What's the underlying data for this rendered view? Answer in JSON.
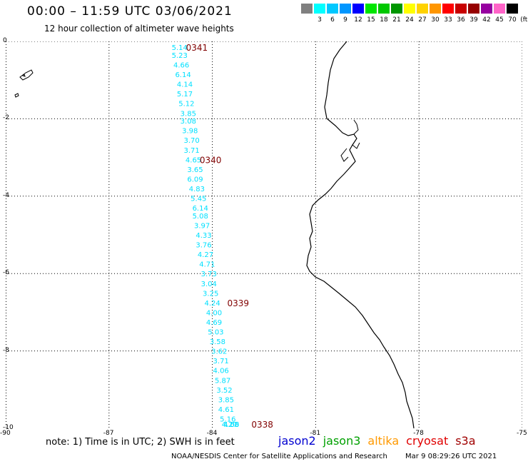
{
  "header": {
    "title": "00:00 – 11:59 UTC 03/06/2021",
    "subtitle": "12 hour collection of altimeter wave heights"
  },
  "color_scale": {
    "swatches": [
      {
        "label": "",
        "color": "#808080"
      },
      {
        "label": "3",
        "color": "#00ffff"
      },
      {
        "label": "6",
        "color": "#00c8ff"
      },
      {
        "label": "9",
        "color": "#0096ff"
      },
      {
        "label": "12",
        "color": "#0000ff"
      },
      {
        "label": "15",
        "color": "#00e600"
      },
      {
        "label": "18",
        "color": "#00c800"
      },
      {
        "label": "21",
        "color": "#009600"
      },
      {
        "label": "24",
        "color": "#ffff00"
      },
      {
        "label": "27",
        "color": "#ffd200"
      },
      {
        "label": "30",
        "color": "#ff9600"
      },
      {
        "label": "33",
        "color": "#ff0000"
      },
      {
        "label": "36",
        "color": "#c80000"
      },
      {
        "label": "39",
        "color": "#960000"
      },
      {
        "label": "42",
        "color": "#9600a0"
      },
      {
        "label": "45",
        "color": "#ff64c8"
      },
      {
        "label": "70",
        "color": "#000000"
      }
    ],
    "unit": "(ft)"
  },
  "map": {
    "lon_range": [
      -90,
      -75
    ],
    "lat_range": [
      -10,
      0
    ],
    "lon_ticks": [
      -90,
      -87,
      -84,
      -81,
      -78,
      -75
    ],
    "lat_ticks": [
      0,
      -2,
      -4,
      -6,
      -8,
      -10
    ],
    "track_color": "#00e0ff",
    "pass_label_color": "#800000",
    "wave_heights": [
      {
        "lat": -0.15,
        "lon": -84.95,
        "v": "5.14"
      },
      {
        "lat": -0.35,
        "lon": -84.95,
        "v": "5.23"
      },
      {
        "lat": -0.6,
        "lon": -84.9,
        "v": "4.66"
      },
      {
        "lat": -0.85,
        "lon": -84.85,
        "v": "6.14"
      },
      {
        "lat": -1.1,
        "lon": -84.8,
        "v": "4.14"
      },
      {
        "lat": -1.35,
        "lon": -84.8,
        "v": "5.17"
      },
      {
        "lat": -1.6,
        "lon": -84.75,
        "v": "5.12"
      },
      {
        "lat": -1.85,
        "lon": -84.7,
        "v": "3.85"
      },
      {
        "lat": -2.05,
        "lon": -84.7,
        "v": "3.08"
      },
      {
        "lat": -2.3,
        "lon": -84.65,
        "v": "3.98"
      },
      {
        "lat": -2.55,
        "lon": -84.6,
        "v": "3.70"
      },
      {
        "lat": -2.8,
        "lon": -84.6,
        "v": "3.71"
      },
      {
        "lat": -3.05,
        "lon": -84.55,
        "v": "4.65"
      },
      {
        "lat": -3.3,
        "lon": -84.5,
        "v": "3.65"
      },
      {
        "lat": -3.55,
        "lon": -84.5,
        "v": "6.09"
      },
      {
        "lat": -3.8,
        "lon": -84.45,
        "v": "4.83"
      },
      {
        "lat": -4.05,
        "lon": -84.4,
        "v": "5.45"
      },
      {
        "lat": -4.3,
        "lon": -84.35,
        "v": "6.14"
      },
      {
        "lat": -4.5,
        "lon": -84.35,
        "v": "5.08"
      },
      {
        "lat": -4.75,
        "lon": -84.3,
        "v": "3.97"
      },
      {
        "lat": -5.0,
        "lon": -84.25,
        "v": "4.33"
      },
      {
        "lat": -5.25,
        "lon": -84.25,
        "v": "3.76"
      },
      {
        "lat": -5.5,
        "lon": -84.2,
        "v": "4.27"
      },
      {
        "lat": -5.75,
        "lon": -84.15,
        "v": "4.71"
      },
      {
        "lat": -6.0,
        "lon": -84.1,
        "v": "3.73"
      },
      {
        "lat": -6.25,
        "lon": -84.1,
        "v": "3.04"
      },
      {
        "lat": -6.5,
        "lon": -84.05,
        "v": "3.25"
      },
      {
        "lat": -6.75,
        "lon": -84.0,
        "v": "4.24"
      },
      {
        "lat": -7.0,
        "lon": -83.95,
        "v": "4.00"
      },
      {
        "lat": -7.25,
        "lon": -83.95,
        "v": "4.69"
      },
      {
        "lat": -7.5,
        "lon": -83.9,
        "v": "5.03"
      },
      {
        "lat": -7.75,
        "lon": -83.85,
        "v": "3.58"
      },
      {
        "lat": -8.0,
        "lon": -83.8,
        "v": "3.62"
      },
      {
        "lat": -8.25,
        "lon": -83.75,
        "v": "3.71"
      },
      {
        "lat": -8.5,
        "lon": -83.75,
        "v": "4.06"
      },
      {
        "lat": -8.75,
        "lon": -83.7,
        "v": "5.87"
      },
      {
        "lat": -9.0,
        "lon": -83.65,
        "v": "3.52"
      },
      {
        "lat": -9.25,
        "lon": -83.6,
        "v": "3.85"
      },
      {
        "lat": -9.5,
        "lon": -83.6,
        "v": "4.61"
      },
      {
        "lat": -9.75,
        "lon": -83.55,
        "v": "5.16"
      },
      {
        "lat": -10.0,
        "lon": -83.5,
        "v": "4.27"
      },
      {
        "lat": -10.25,
        "lon": -83.45,
        "v": "4.59"
      },
      {
        "lat": -10.45,
        "lon": -83.45,
        "v": "4.06"
      }
    ],
    "pass_labels": [
      {
        "lat": -0.15,
        "lon": -84.45,
        "v": "0341"
      },
      {
        "lat": -3.05,
        "lon": -84.05,
        "v": "0340"
      },
      {
        "lat": -6.75,
        "lon": -83.25,
        "v": "0339"
      },
      {
        "lat": -10.45,
        "lon": -82.55,
        "v": "0338"
      }
    ]
  },
  "note": "note: 1) Time is in UTC; 2) SWH is in feet",
  "satellites": [
    {
      "name": "jason2",
      "color": "#0000d0"
    },
    {
      "name": "jason3",
      "color": "#00a000"
    },
    {
      "name": "altika",
      "color": "#ff9900"
    },
    {
      "name": "cryosat",
      "color": "#e00000"
    },
    {
      "name": "s3a",
      "color": "#a00000"
    }
  ],
  "footer": {
    "credit": "NOAA/NESDIS Center for Satellite Applications and Research",
    "timestamp": "Mar  9 08:29:26 UTC 2021"
  }
}
